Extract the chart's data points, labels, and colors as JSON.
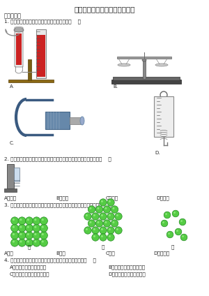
{
  "title": "八年级下学期物理期末考试试卷",
  "bg_color": "#ffffff",
  "section1": "一、单选题",
  "q1": "1. 如图所示的工具中能直接测量力的大小的是（    ）",
  "q2": "2. 如图所示的帕斯卡桶实验装置，影响液体内部压强的因素是液体的（    ）",
  "q2_opts": [
    "A．质量",
    "B．深度",
    "C．密度",
    "D．体积"
  ],
  "q3": "3. 如图所示的三种模型示意图中，最能体现气体分子群存在形态的是（    ）",
  "q3_labels": [
    "甲",
    "乙",
    "丙"
  ],
  "q3_opts": [
    "A．甲",
    "B．乙",
    "C．丙",
    "D．甲和丙"
  ],
  "q4": "4. 以下情形中，体现出力的作用效果与另外三个不同的是（    ）",
  "q4_A": "A．足球在草地上越滚越慢",
  "q4_B": "B．被踢在脚下的足球变扁",
  "q4_C": "C．足球在空气中沿弧线飞行",
  "q4_D": "D．守门员抱住飞来的足球",
  "label_A": "A.",
  "label_B": "B.",
  "label_C": "C.",
  "label_D": "D.",
  "green_fill": "#55cc44",
  "green_edge": "#228822",
  "green_shine": "#99ee88"
}
